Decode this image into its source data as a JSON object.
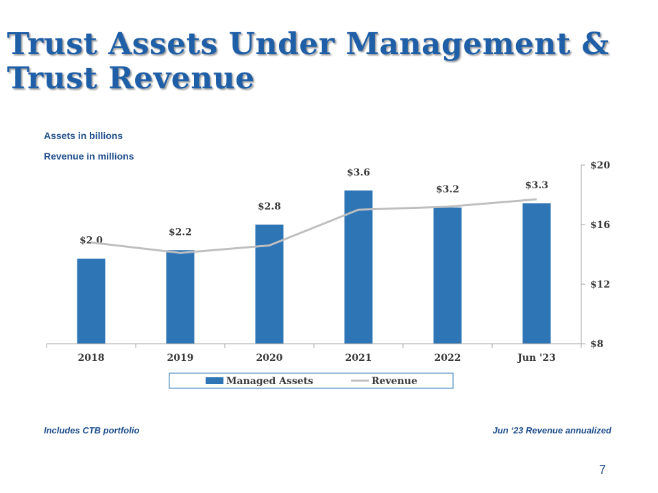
{
  "slide": {
    "title_line1": "Trust Assets Under Management &",
    "title_line2": "Trust Revenue",
    "assets_unit_note": "Assets in billions",
    "revenue_unit_note": "Revenue in millions",
    "footnote_left": "Includes CTB portfolio",
    "footnote_right": "Jun ‘23 Revenue annualized",
    "page_number": "7"
  },
  "colors": {
    "title": "#1f5fa8",
    "bar": "#2e75b6",
    "line": "#bfbfbf",
    "text": "#1f4e8c"
  },
  "chart_data": {
    "type": "bar",
    "categories": [
      "2018",
      "2019",
      "2020",
      "2021",
      "2022",
      "Jun '23"
    ],
    "series": [
      {
        "name": "Managed Assets",
        "type": "bar",
        "axis": "left",
        "values": [
          2.0,
          2.2,
          2.8,
          3.6,
          3.2,
          3.3
        ],
        "data_labels": [
          "$2.0",
          "$2.2",
          "$2.8",
          "$3.6",
          "$3.2",
          "$3.3"
        ]
      },
      {
        "name": "Revenue",
        "type": "line",
        "axis": "right",
        "values": [
          14.8,
          14.1,
          14.6,
          17.0,
          17.2,
          17.7
        ]
      }
    ],
    "left_axis": {
      "range": [
        0,
        4.2
      ],
      "visible": false
    },
    "right_axis": {
      "range": [
        8,
        20
      ],
      "ticks": [
        8,
        12,
        16,
        20
      ],
      "tick_labels": [
        "$8",
        "$12",
        "$16",
        "$20"
      ]
    },
    "grid": false,
    "legend": "bottom"
  }
}
